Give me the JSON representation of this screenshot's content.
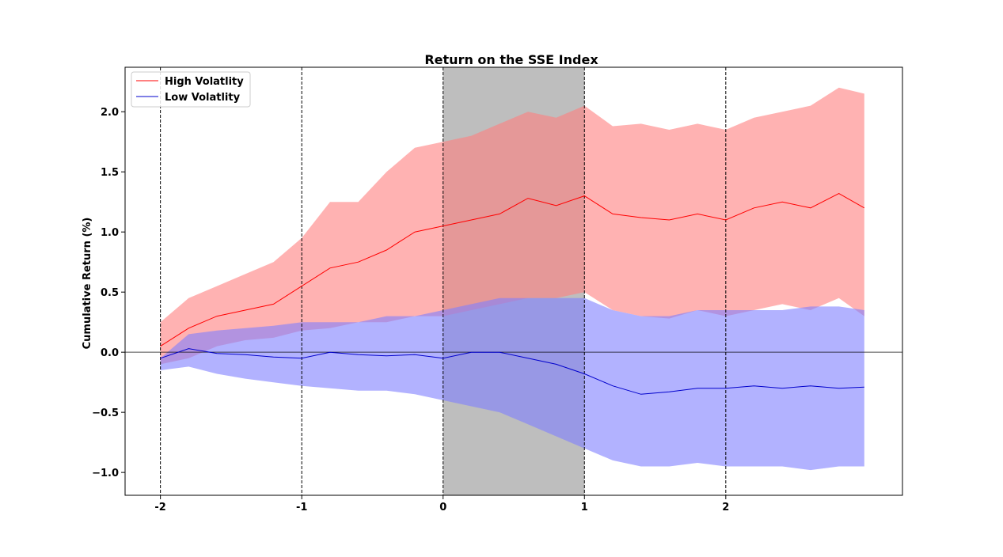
{
  "chart_data": {
    "type": "line",
    "title": "Return on the SSE Index",
    "xlabel": "",
    "ylabel": "Cumulative Return (%)",
    "xlim": [
      -2.25,
      3.25
    ],
    "ylim": [
      -1.19,
      2.37
    ],
    "xticks": [
      -2,
      -1,
      0,
      1,
      2
    ],
    "xtick_labels": [
      "-2",
      "-1",
      "0",
      "1",
      "2"
    ],
    "yticks": [
      -1.0,
      -0.5,
      0.0,
      0.5,
      1.0,
      1.5,
      2.0
    ],
    "ytick_labels": [
      "−1.0",
      "−0.5",
      "0.0",
      "0.5",
      "1.0",
      "1.5",
      "2.0"
    ],
    "vlines": [
      -2,
      -1,
      0,
      1,
      2
    ],
    "hline": 0,
    "shaded_region": {
      "x": [
        0,
        1
      ],
      "color": "#bebebe"
    },
    "legend_position": "upper-left",
    "series": [
      {
        "name": "High Volatlity",
        "color": "#ff0000",
        "band_color": "#ff7f7f",
        "x": [
          -2.0,
          -1.8,
          -1.6,
          -1.4,
          -1.2,
          -1.0,
          -0.8,
          -0.6,
          -0.4,
          -0.2,
          0.0,
          0.2,
          0.4,
          0.6,
          0.8,
          1.0,
          1.2,
          1.4,
          1.6,
          1.8,
          2.0,
          2.2,
          2.4,
          2.6,
          2.8,
          2.98
        ],
        "mean": [
          0.05,
          0.2,
          0.3,
          0.35,
          0.4,
          0.55,
          0.7,
          0.75,
          0.85,
          1.0,
          1.05,
          1.1,
          1.15,
          1.28,
          1.22,
          1.3,
          1.15,
          1.12,
          1.1,
          1.15,
          1.1,
          1.2,
          1.25,
          1.2,
          1.32,
          1.2
        ],
        "upper": [
          0.25,
          0.45,
          0.55,
          0.65,
          0.75,
          0.95,
          1.25,
          1.25,
          1.5,
          1.7,
          1.75,
          1.8,
          1.9,
          2.0,
          1.95,
          2.05,
          1.88,
          1.9,
          1.85,
          1.9,
          1.85,
          1.95,
          2.0,
          2.05,
          2.2,
          2.15
        ],
        "lower": [
          -0.1,
          -0.05,
          0.05,
          0.1,
          0.12,
          0.18,
          0.2,
          0.25,
          0.25,
          0.3,
          0.3,
          0.35,
          0.4,
          0.45,
          0.45,
          0.5,
          0.35,
          0.3,
          0.28,
          0.35,
          0.3,
          0.35,
          0.4,
          0.35,
          0.45,
          0.3
        ]
      },
      {
        "name": "Low Volatlity",
        "color": "#0000cc",
        "band_color": "#7f7fff",
        "x": [
          -2.0,
          -1.8,
          -1.6,
          -1.4,
          -1.2,
          -1.0,
          -0.8,
          -0.6,
          -0.4,
          -0.2,
          0.0,
          0.2,
          0.4,
          0.6,
          0.8,
          1.0,
          1.2,
          1.4,
          1.6,
          1.8,
          2.0,
          2.2,
          2.4,
          2.6,
          2.8,
          2.98
        ],
        "mean": [
          -0.05,
          0.03,
          -0.01,
          -0.02,
          -0.04,
          -0.05,
          0.0,
          -0.02,
          -0.03,
          -0.02,
          -0.05,
          0.0,
          0.0,
          -0.05,
          -0.1,
          -0.18,
          -0.28,
          -0.35,
          -0.33,
          -0.3,
          -0.3,
          -0.28,
          -0.3,
          -0.28,
          -0.3,
          -0.29
        ],
        "upper": [
          -0.05,
          0.15,
          0.18,
          0.2,
          0.22,
          0.25,
          0.25,
          0.25,
          0.3,
          0.3,
          0.35,
          0.4,
          0.45,
          0.45,
          0.45,
          0.45,
          0.35,
          0.3,
          0.3,
          0.35,
          0.35,
          0.35,
          0.35,
          0.38,
          0.38,
          0.35
        ],
        "lower": [
          -0.15,
          -0.12,
          -0.18,
          -0.22,
          -0.25,
          -0.28,
          -0.3,
          -0.32,
          -0.32,
          -0.35,
          -0.4,
          -0.45,
          -0.5,
          -0.6,
          -0.7,
          -0.8,
          -0.9,
          -0.95,
          -0.95,
          -0.92,
          -0.95,
          -0.95,
          -0.95,
          -0.98,
          -0.95,
          -0.95
        ]
      }
    ]
  }
}
